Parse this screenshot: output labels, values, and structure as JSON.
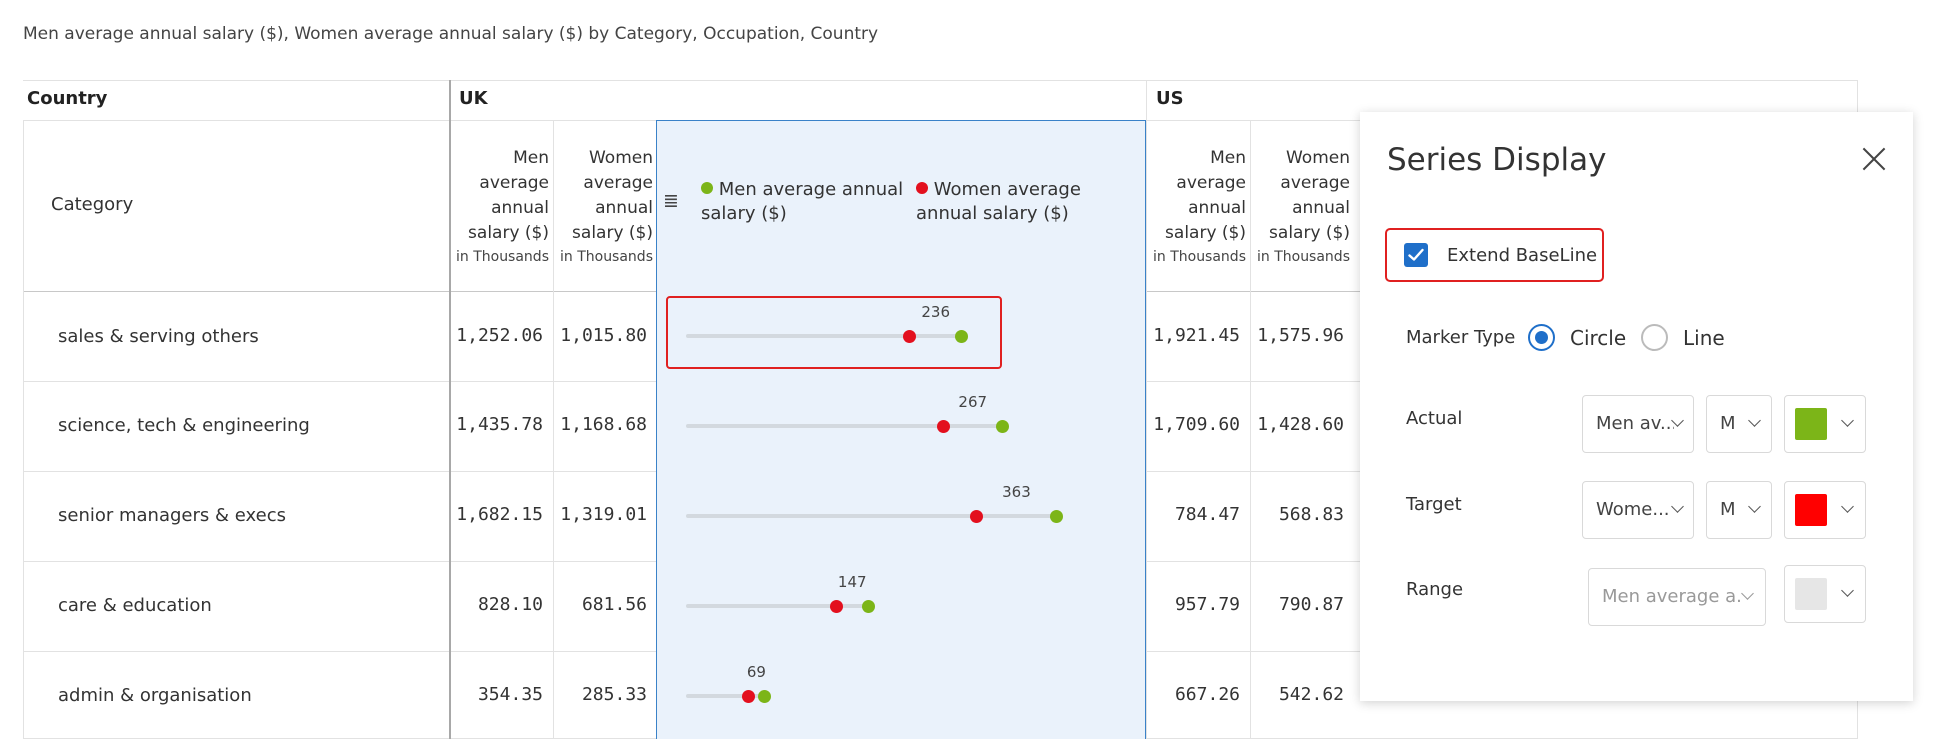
{
  "subtitle": "Men average annual salary ($), Women average annual salary ($) by Category, Occupation, Country",
  "table": {
    "country_header": "Country",
    "category_header": "Category",
    "countries": [
      "UK",
      "US"
    ],
    "col_men": "Men average annual salary ($)",
    "col_women": "Women average annual salary ($)",
    "col_unit": "in Thousands",
    "legend_men": "Men average annual salary ($)",
    "legend_women": "Women average annual salary ($)",
    "rows": [
      {
        "category": "sales & serving others",
        "uk_men": "1,252.06",
        "uk_women": "1,015.80",
        "diff": "236",
        "us_men": "1,921.45",
        "us_women": "1,575.96"
      },
      {
        "category": "science, tech & engineering",
        "uk_men": "1,435.78",
        "uk_women": "1,168.68",
        "diff": "267",
        "us_men": "1,709.60",
        "us_women": "1,428.60"
      },
      {
        "category": "senior managers & execs",
        "uk_men": "1,682.15",
        "uk_women": "1,319.01",
        "diff": "363",
        "us_men": "784.47",
        "us_women": "568.83"
      },
      {
        "category": "care & education",
        "uk_men": "828.10",
        "uk_women": "681.56",
        "diff": "147",
        "us_men": "957.79",
        "us_women": "790.87"
      },
      {
        "category": "admin & organisation",
        "uk_men": "354.35",
        "uk_women": "285.33",
        "diff": "69",
        "us_men": "667.26",
        "us_women": "542.62"
      }
    ]
  },
  "chart_data": {
    "type": "dot-plot",
    "categories": [
      "sales & serving others",
      "science, tech & engineering",
      "senior managers & execs",
      "care & education",
      "admin & organisation"
    ],
    "series": [
      {
        "name": "Men average annual salary ($)",
        "values": [
          1252.06,
          1435.78,
          1682.15,
          828.1,
          354.35
        ],
        "color": "#7cb518"
      },
      {
        "name": "Women average annual salary ($)",
        "values": [
          1015.8,
          1168.68,
          1319.01,
          681.56,
          285.33
        ],
        "color": "#e3101e"
      }
    ],
    "difference_labels": [
      "236",
      "267",
      "363",
      "147",
      "69"
    ],
    "xlim": [
      0,
      1930
    ]
  },
  "panel": {
    "title": "Series Display",
    "extend_baseline_label": "Extend BaseLine",
    "extend_baseline_checked": true,
    "marker_type_label": "Marker Type",
    "marker_options": [
      "Circle",
      "Line"
    ],
    "marker_selected": "Circle",
    "actual_label": "Actual",
    "actual_series": "Men av...",
    "actual_marker": "M",
    "actual_color": "#7cb518",
    "target_label": "Target",
    "target_series": "Wome...",
    "target_marker": "M",
    "target_color": "#ff0000",
    "range_label": "Range",
    "range_series": "Men average a...",
    "range_color": "#e6e6e6"
  },
  "icons": {
    "legend": "list-lines-icon",
    "close": "close-icon",
    "check": "check-icon",
    "chevron": "chevron-down-icon"
  }
}
